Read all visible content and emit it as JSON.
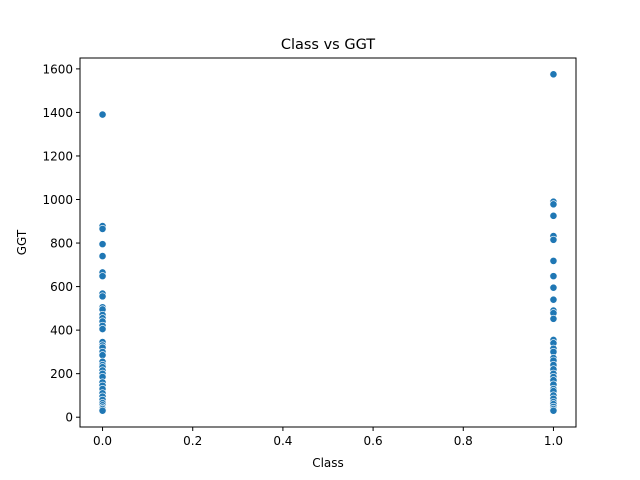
{
  "chart_data": {
    "type": "scatter",
    "title": "Class vs GGT",
    "xlabel": "Class",
    "ylabel": "GGT",
    "xlim": [
      -0.05,
      1.05
    ],
    "ylim": [
      -45,
      1650
    ],
    "xticks": [
      0.0,
      0.2,
      0.4,
      0.6,
      0.8,
      1.0
    ],
    "xtick_labels": [
      "0.0",
      "0.2",
      "0.4",
      "0.6",
      "0.8",
      "1.0"
    ],
    "yticks": [
      0,
      200,
      400,
      600,
      800,
      1000,
      1200,
      1400,
      1600
    ],
    "ytick_labels": [
      "0",
      "200",
      "400",
      "600",
      "800",
      "1000",
      "1200",
      "1400",
      "1600"
    ],
    "grid": false,
    "marker_color": "#1f77b4",
    "points": [
      {
        "x": 0,
        "y": 1390
      },
      {
        "x": 0,
        "y": 878
      },
      {
        "x": 0,
        "y": 865
      },
      {
        "x": 0,
        "y": 795
      },
      {
        "x": 0,
        "y": 740
      },
      {
        "x": 0,
        "y": 665
      },
      {
        "x": 0,
        "y": 648
      },
      {
        "x": 0,
        "y": 568
      },
      {
        "x": 0,
        "y": 555
      },
      {
        "x": 0,
        "y": 505
      },
      {
        "x": 0,
        "y": 495
      },
      {
        "x": 0,
        "y": 470
      },
      {
        "x": 0,
        "y": 455
      },
      {
        "x": 0,
        "y": 440
      },
      {
        "x": 0,
        "y": 420
      },
      {
        "x": 0,
        "y": 405
      },
      {
        "x": 0,
        "y": 345
      },
      {
        "x": 0,
        "y": 330
      },
      {
        "x": 0,
        "y": 320
      },
      {
        "x": 0,
        "y": 300
      },
      {
        "x": 0,
        "y": 285
      },
      {
        "x": 0,
        "y": 255
      },
      {
        "x": 0,
        "y": 240
      },
      {
        "x": 0,
        "y": 230
      },
      {
        "x": 0,
        "y": 215
      },
      {
        "x": 0,
        "y": 200
      },
      {
        "x": 0,
        "y": 185
      },
      {
        "x": 0,
        "y": 160
      },
      {
        "x": 0,
        "y": 145
      },
      {
        "x": 0,
        "y": 130
      },
      {
        "x": 0,
        "y": 110
      },
      {
        "x": 0,
        "y": 95
      },
      {
        "x": 0,
        "y": 80
      },
      {
        "x": 0,
        "y": 65
      },
      {
        "x": 0,
        "y": 55
      },
      {
        "x": 0,
        "y": 45
      },
      {
        "x": 0,
        "y": 38
      },
      {
        "x": 0,
        "y": 30
      },
      {
        "x": 1,
        "y": 1575
      },
      {
        "x": 1,
        "y": 990
      },
      {
        "x": 1,
        "y": 978
      },
      {
        "x": 1,
        "y": 925
      },
      {
        "x": 1,
        "y": 832
      },
      {
        "x": 1,
        "y": 815
      },
      {
        "x": 1,
        "y": 718
      },
      {
        "x": 1,
        "y": 648
      },
      {
        "x": 1,
        "y": 595
      },
      {
        "x": 1,
        "y": 540
      },
      {
        "x": 1,
        "y": 490
      },
      {
        "x": 1,
        "y": 478
      },
      {
        "x": 1,
        "y": 452
      },
      {
        "x": 1,
        "y": 355
      },
      {
        "x": 1,
        "y": 340
      },
      {
        "x": 1,
        "y": 315
      },
      {
        "x": 1,
        "y": 300
      },
      {
        "x": 1,
        "y": 272
      },
      {
        "x": 1,
        "y": 260
      },
      {
        "x": 1,
        "y": 240
      },
      {
        "x": 1,
        "y": 220
      },
      {
        "x": 1,
        "y": 200
      },
      {
        "x": 1,
        "y": 185
      },
      {
        "x": 1,
        "y": 170
      },
      {
        "x": 1,
        "y": 150
      },
      {
        "x": 1,
        "y": 130
      },
      {
        "x": 1,
        "y": 120
      },
      {
        "x": 1,
        "y": 100
      },
      {
        "x": 1,
        "y": 85
      },
      {
        "x": 1,
        "y": 70
      },
      {
        "x": 1,
        "y": 60
      },
      {
        "x": 1,
        "y": 48
      },
      {
        "x": 1,
        "y": 38
      },
      {
        "x": 1,
        "y": 30
      }
    ]
  }
}
